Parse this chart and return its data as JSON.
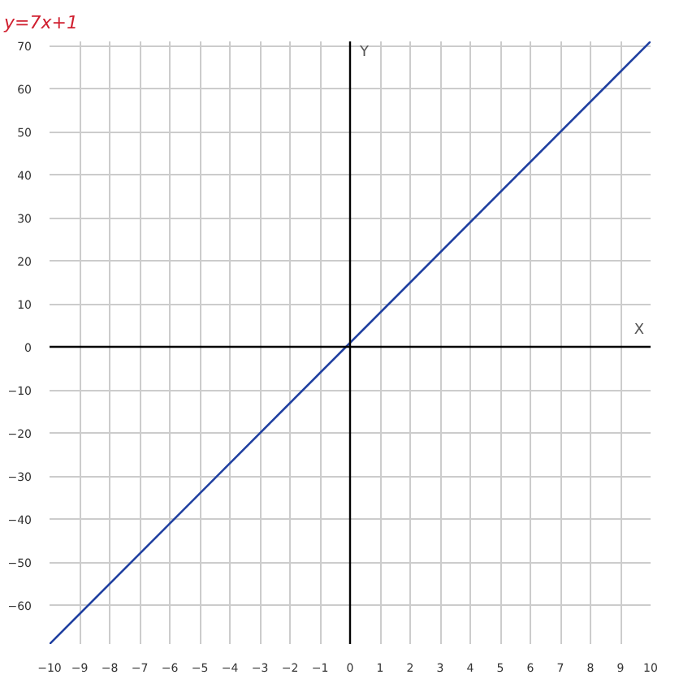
{
  "chart_data": {
    "type": "line",
    "title": "y=7x+1",
    "xlabel": "X",
    "ylabel": "Y",
    "x": [
      -10,
      10
    ],
    "series": [
      {
        "color": "#1f3fa0",
        "values": [
          -69,
          71
        ]
      }
    ],
    "xlim": [
      -10,
      10
    ],
    "ylim": [
      -69,
      71
    ],
    "xticks": [
      -10,
      -9,
      -8,
      -7,
      -6,
      -5,
      -4,
      -3,
      -2,
      -1,
      0,
      1,
      2,
      3,
      4,
      5,
      6,
      7,
      8,
      9,
      10
    ],
    "yticks": [
      -60,
      -50,
      -40,
      -30,
      -20,
      -10,
      0,
      10,
      20,
      30,
      40,
      50,
      60,
      70
    ],
    "grid": true
  }
}
